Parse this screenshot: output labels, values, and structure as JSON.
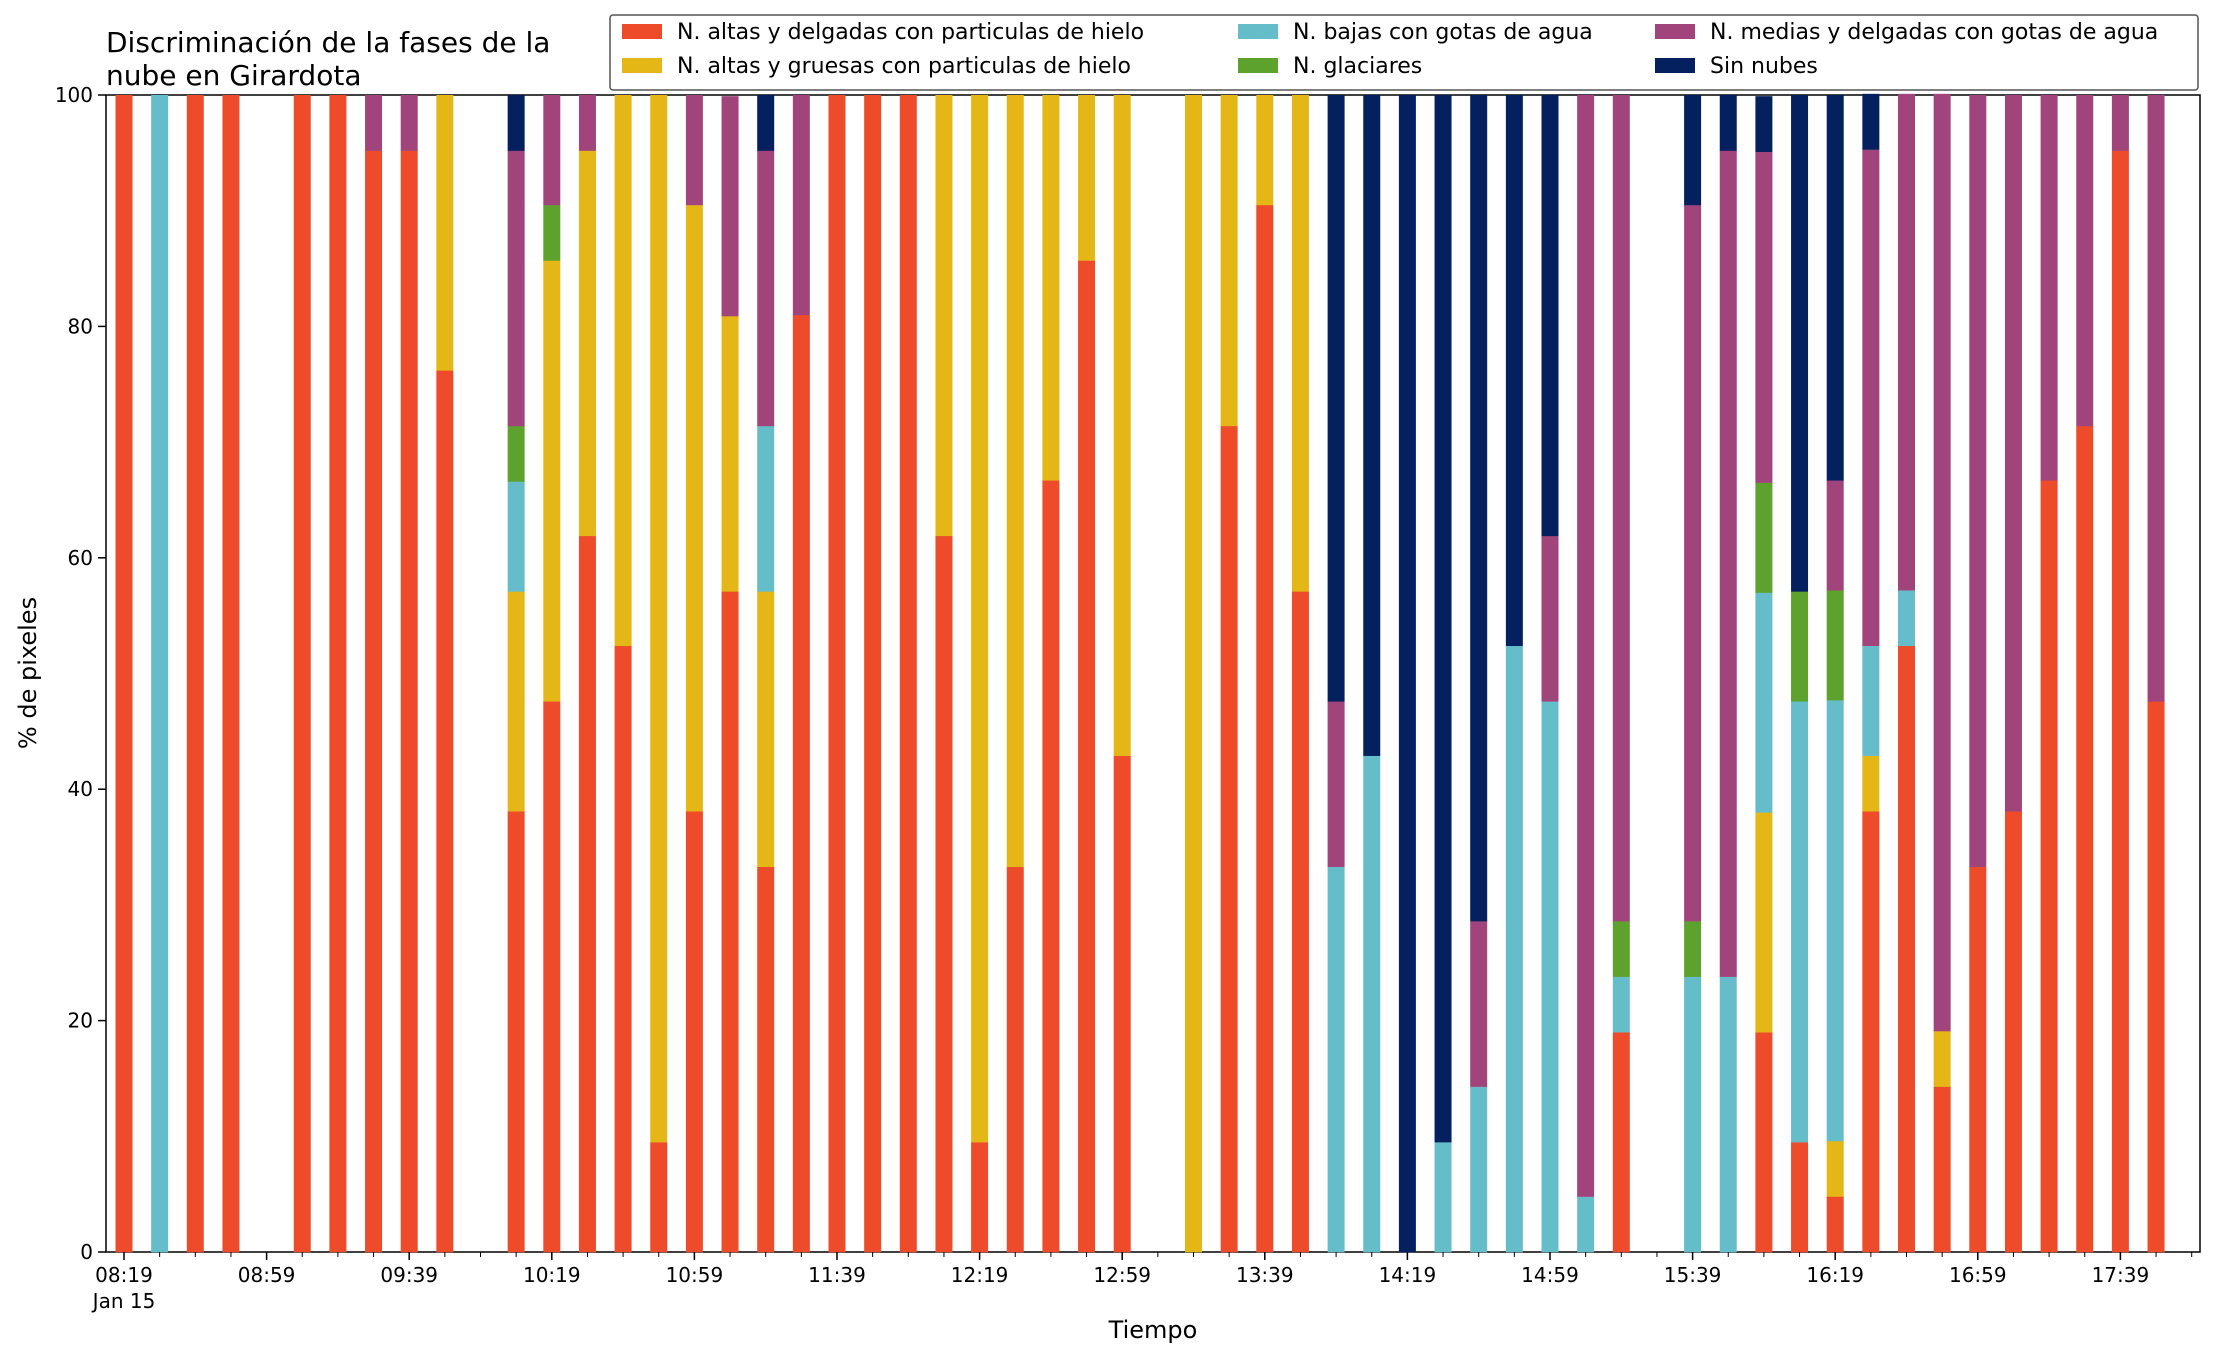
{
  "chart_data": {
    "type": "bar",
    "stacked": true,
    "title_lines": [
      "Discriminación de la fases de la",
      "nube en Girardota"
    ],
    "xlabel": "Tiempo",
    "ylabel": "% de pixeles",
    "ylim": [
      0,
      100
    ],
    "yticks": [
      "0",
      "20",
      "40",
      "60",
      "80",
      "100"
    ],
    "x_tick_labels": [
      {
        "slot": 0,
        "label": "08:19",
        "sub": "Jan 15"
      },
      {
        "slot": 4,
        "label": "08:59"
      },
      {
        "slot": 8,
        "label": "09:39"
      },
      {
        "slot": 12,
        "label": "10:19"
      },
      {
        "slot": 16,
        "label": "10:59"
      },
      {
        "slot": 20,
        "label": "11:39"
      },
      {
        "slot": 24,
        "label": "12:19"
      },
      {
        "slot": 28,
        "label": "12:59"
      },
      {
        "slot": 32,
        "label": "13:39"
      },
      {
        "slot": 36,
        "label": "14:19"
      },
      {
        "slot": 40,
        "label": "14:59"
      },
      {
        "slot": 44,
        "label": "15:39"
      },
      {
        "slot": 48,
        "label": "16:19"
      },
      {
        "slot": 52,
        "label": "16:59"
      },
      {
        "slot": 56,
        "label": "17:39"
      }
    ],
    "legend_position": "top-right",
    "series": [
      {
        "name": "N. altas y delgadas con particulas de hielo",
        "color": "#ee4b2b"
      },
      {
        "name": "N. altas y gruesas con particulas de hielo",
        "color": "#e4b717"
      },
      {
        "name": "N. bajas con gotas de agua",
        "color": "#66bdca"
      },
      {
        "name": "N. glaciares",
        "color": "#5ea22e"
      },
      {
        "name": "N. medias y delgadas con gotas de agua",
        "color": "#a2447c"
      },
      {
        "name": "Sin nubes",
        "color": "#04205e"
      }
    ],
    "series_order": [
      "N. altas y delgadas con particulas de hielo",
      "N. altas y gruesas con particulas de hielo",
      "N. bajas con gotas de agua",
      "N. glaciares",
      "N. medias y delgadas con gotas de agua",
      "Sin nubes"
    ],
    "bars": [
      {
        "slot": 0,
        "values": [
          100,
          0,
          0,
          0,
          0,
          0
        ]
      },
      {
        "slot": 1,
        "values": [
          0,
          0,
          100,
          0,
          0,
          0
        ]
      },
      {
        "slot": 2,
        "values": [
          100,
          0,
          0,
          0,
          0,
          0
        ]
      },
      {
        "slot": 3,
        "values": [
          100,
          0,
          0,
          0,
          0,
          0
        ]
      },
      {
        "slot": 5,
        "values": [
          100,
          0,
          0,
          0,
          0,
          0
        ]
      },
      {
        "slot": 6,
        "values": [
          100,
          0,
          0,
          0,
          0,
          0
        ]
      },
      {
        "slot": 7,
        "values": [
          95.2,
          0,
          0,
          0,
          4.8,
          0
        ]
      },
      {
        "slot": 8,
        "values": [
          95.2,
          0,
          0,
          0,
          4.8,
          0
        ]
      },
      {
        "slot": 9,
        "values": [
          76.2,
          23.8,
          0,
          0,
          0,
          0
        ]
      },
      {
        "slot": 11,
        "values": [
          38.1,
          19.0,
          9.5,
          4.8,
          23.8,
          4.8
        ]
      },
      {
        "slot": 12,
        "values": [
          47.6,
          38.1,
          0,
          4.8,
          9.5,
          0
        ]
      },
      {
        "slot": 13,
        "values": [
          61.9,
          33.3,
          0,
          0,
          4.8,
          0
        ]
      },
      {
        "slot": 14,
        "values": [
          52.4,
          47.6,
          0,
          0,
          0,
          0
        ]
      },
      {
        "slot": 15,
        "values": [
          9.5,
          90.5,
          0,
          0,
          0,
          0
        ]
      },
      {
        "slot": 16,
        "values": [
          38.1,
          52.4,
          0,
          0,
          9.5,
          0
        ]
      },
      {
        "slot": 17,
        "values": [
          57.1,
          23.8,
          0,
          0,
          19.0,
          0
        ]
      },
      {
        "slot": 18,
        "values": [
          33.3,
          23.8,
          14.3,
          0,
          23.8,
          4.8
        ]
      },
      {
        "slot": 19,
        "values": [
          81.0,
          0,
          0,
          0,
          19.0,
          0
        ]
      },
      {
        "slot": 20,
        "values": [
          100,
          0,
          0,
          0,
          0,
          0
        ]
      },
      {
        "slot": 21,
        "values": [
          100,
          0,
          0,
          0,
          0,
          0
        ]
      },
      {
        "slot": 22,
        "values": [
          100,
          0,
          0,
          0,
          0,
          0
        ]
      },
      {
        "slot": 23,
        "values": [
          61.9,
          38.1,
          0,
          0,
          0,
          0
        ]
      },
      {
        "slot": 24,
        "values": [
          9.5,
          90.5,
          0,
          0,
          0,
          0
        ]
      },
      {
        "slot": 25,
        "values": [
          33.3,
          66.7,
          0,
          0,
          0,
          0
        ]
      },
      {
        "slot": 26,
        "values": [
          66.7,
          33.3,
          0,
          0,
          0,
          0
        ]
      },
      {
        "slot": 27,
        "values": [
          85.7,
          14.3,
          0,
          0,
          0,
          0
        ]
      },
      {
        "slot": 28,
        "values": [
          42.9,
          57.1,
          0,
          0,
          0,
          0
        ]
      },
      {
        "slot": 30,
        "values": [
          0,
          100,
          0,
          0,
          0,
          0
        ]
      },
      {
        "slot": 31,
        "values": [
          71.4,
          28.6,
          0,
          0,
          0,
          0
        ]
      },
      {
        "slot": 32,
        "values": [
          90.5,
          9.5,
          0,
          0,
          0,
          0
        ]
      },
      {
        "slot": 33,
        "values": [
          57.1,
          42.9,
          0,
          0,
          0,
          0
        ]
      },
      {
        "slot": 34,
        "values": [
          0,
          0,
          33.3,
          0,
          14.3,
          52.4
        ]
      },
      {
        "slot": 35,
        "values": [
          0,
          0,
          42.9,
          0,
          0,
          57.1
        ]
      },
      {
        "slot": 36,
        "values": [
          0,
          0,
          0,
          0,
          0,
          100
        ]
      },
      {
        "slot": 37,
        "values": [
          0,
          0,
          9.5,
          0,
          0,
          90.5
        ]
      },
      {
        "slot": 38,
        "values": [
          0,
          0,
          14.3,
          0,
          14.3,
          71.4
        ]
      },
      {
        "slot": 39,
        "values": [
          0,
          0,
          52.4,
          0,
          0,
          47.6
        ]
      },
      {
        "slot": 40,
        "values": [
          0,
          0,
          47.6,
          0,
          14.3,
          38.1
        ]
      },
      {
        "slot": 41,
        "values": [
          0,
          0,
          4.8,
          0,
          95.2,
          0
        ]
      },
      {
        "slot": 42,
        "values": [
          19.0,
          0,
          4.8,
          4.8,
          71.4,
          0
        ]
      },
      {
        "slot": 44,
        "values": [
          0,
          0,
          23.8,
          4.8,
          61.9,
          9.5
        ]
      },
      {
        "slot": 45,
        "values": [
          0,
          0,
          23.8,
          0,
          71.4,
          4.8
        ]
      },
      {
        "slot": 46,
        "values": [
          19.0,
          19.0,
          19.0,
          9.5,
          28.6,
          4.8
        ]
      },
      {
        "slot": 47,
        "values": [
          9.5,
          0,
          38.1,
          9.5,
          0,
          42.9
        ]
      },
      {
        "slot": 48,
        "values": [
          4.8,
          4.8,
          38.1,
          9.5,
          9.5,
          33.3
        ]
      },
      {
        "slot": 49,
        "values": [
          38.1,
          4.8,
          9.5,
          0,
          42.9,
          4.8
        ]
      },
      {
        "slot": 50,
        "values": [
          52.4,
          0,
          4.8,
          0,
          42.9,
          0
        ]
      },
      {
        "slot": 51,
        "values": [
          14.3,
          4.8,
          0,
          0,
          81.0,
          0
        ]
      },
      {
        "slot": 52,
        "values": [
          33.3,
          0,
          0,
          0,
          66.7,
          0
        ]
      },
      {
        "slot": 53,
        "values": [
          38.1,
          0,
          0,
          0,
          61.9,
          0
        ]
      },
      {
        "slot": 54,
        "values": [
          66.7,
          0,
          0,
          0,
          33.3,
          0
        ]
      },
      {
        "slot": 55,
        "values": [
          71.4,
          0,
          0,
          0,
          28.6,
          0
        ]
      },
      {
        "slot": 56,
        "values": [
          95.2,
          0,
          0,
          0,
          4.8,
          0
        ]
      },
      {
        "slot": 57,
        "values": [
          47.6,
          0,
          0,
          0,
          52.4,
          0
        ]
      }
    ]
  }
}
